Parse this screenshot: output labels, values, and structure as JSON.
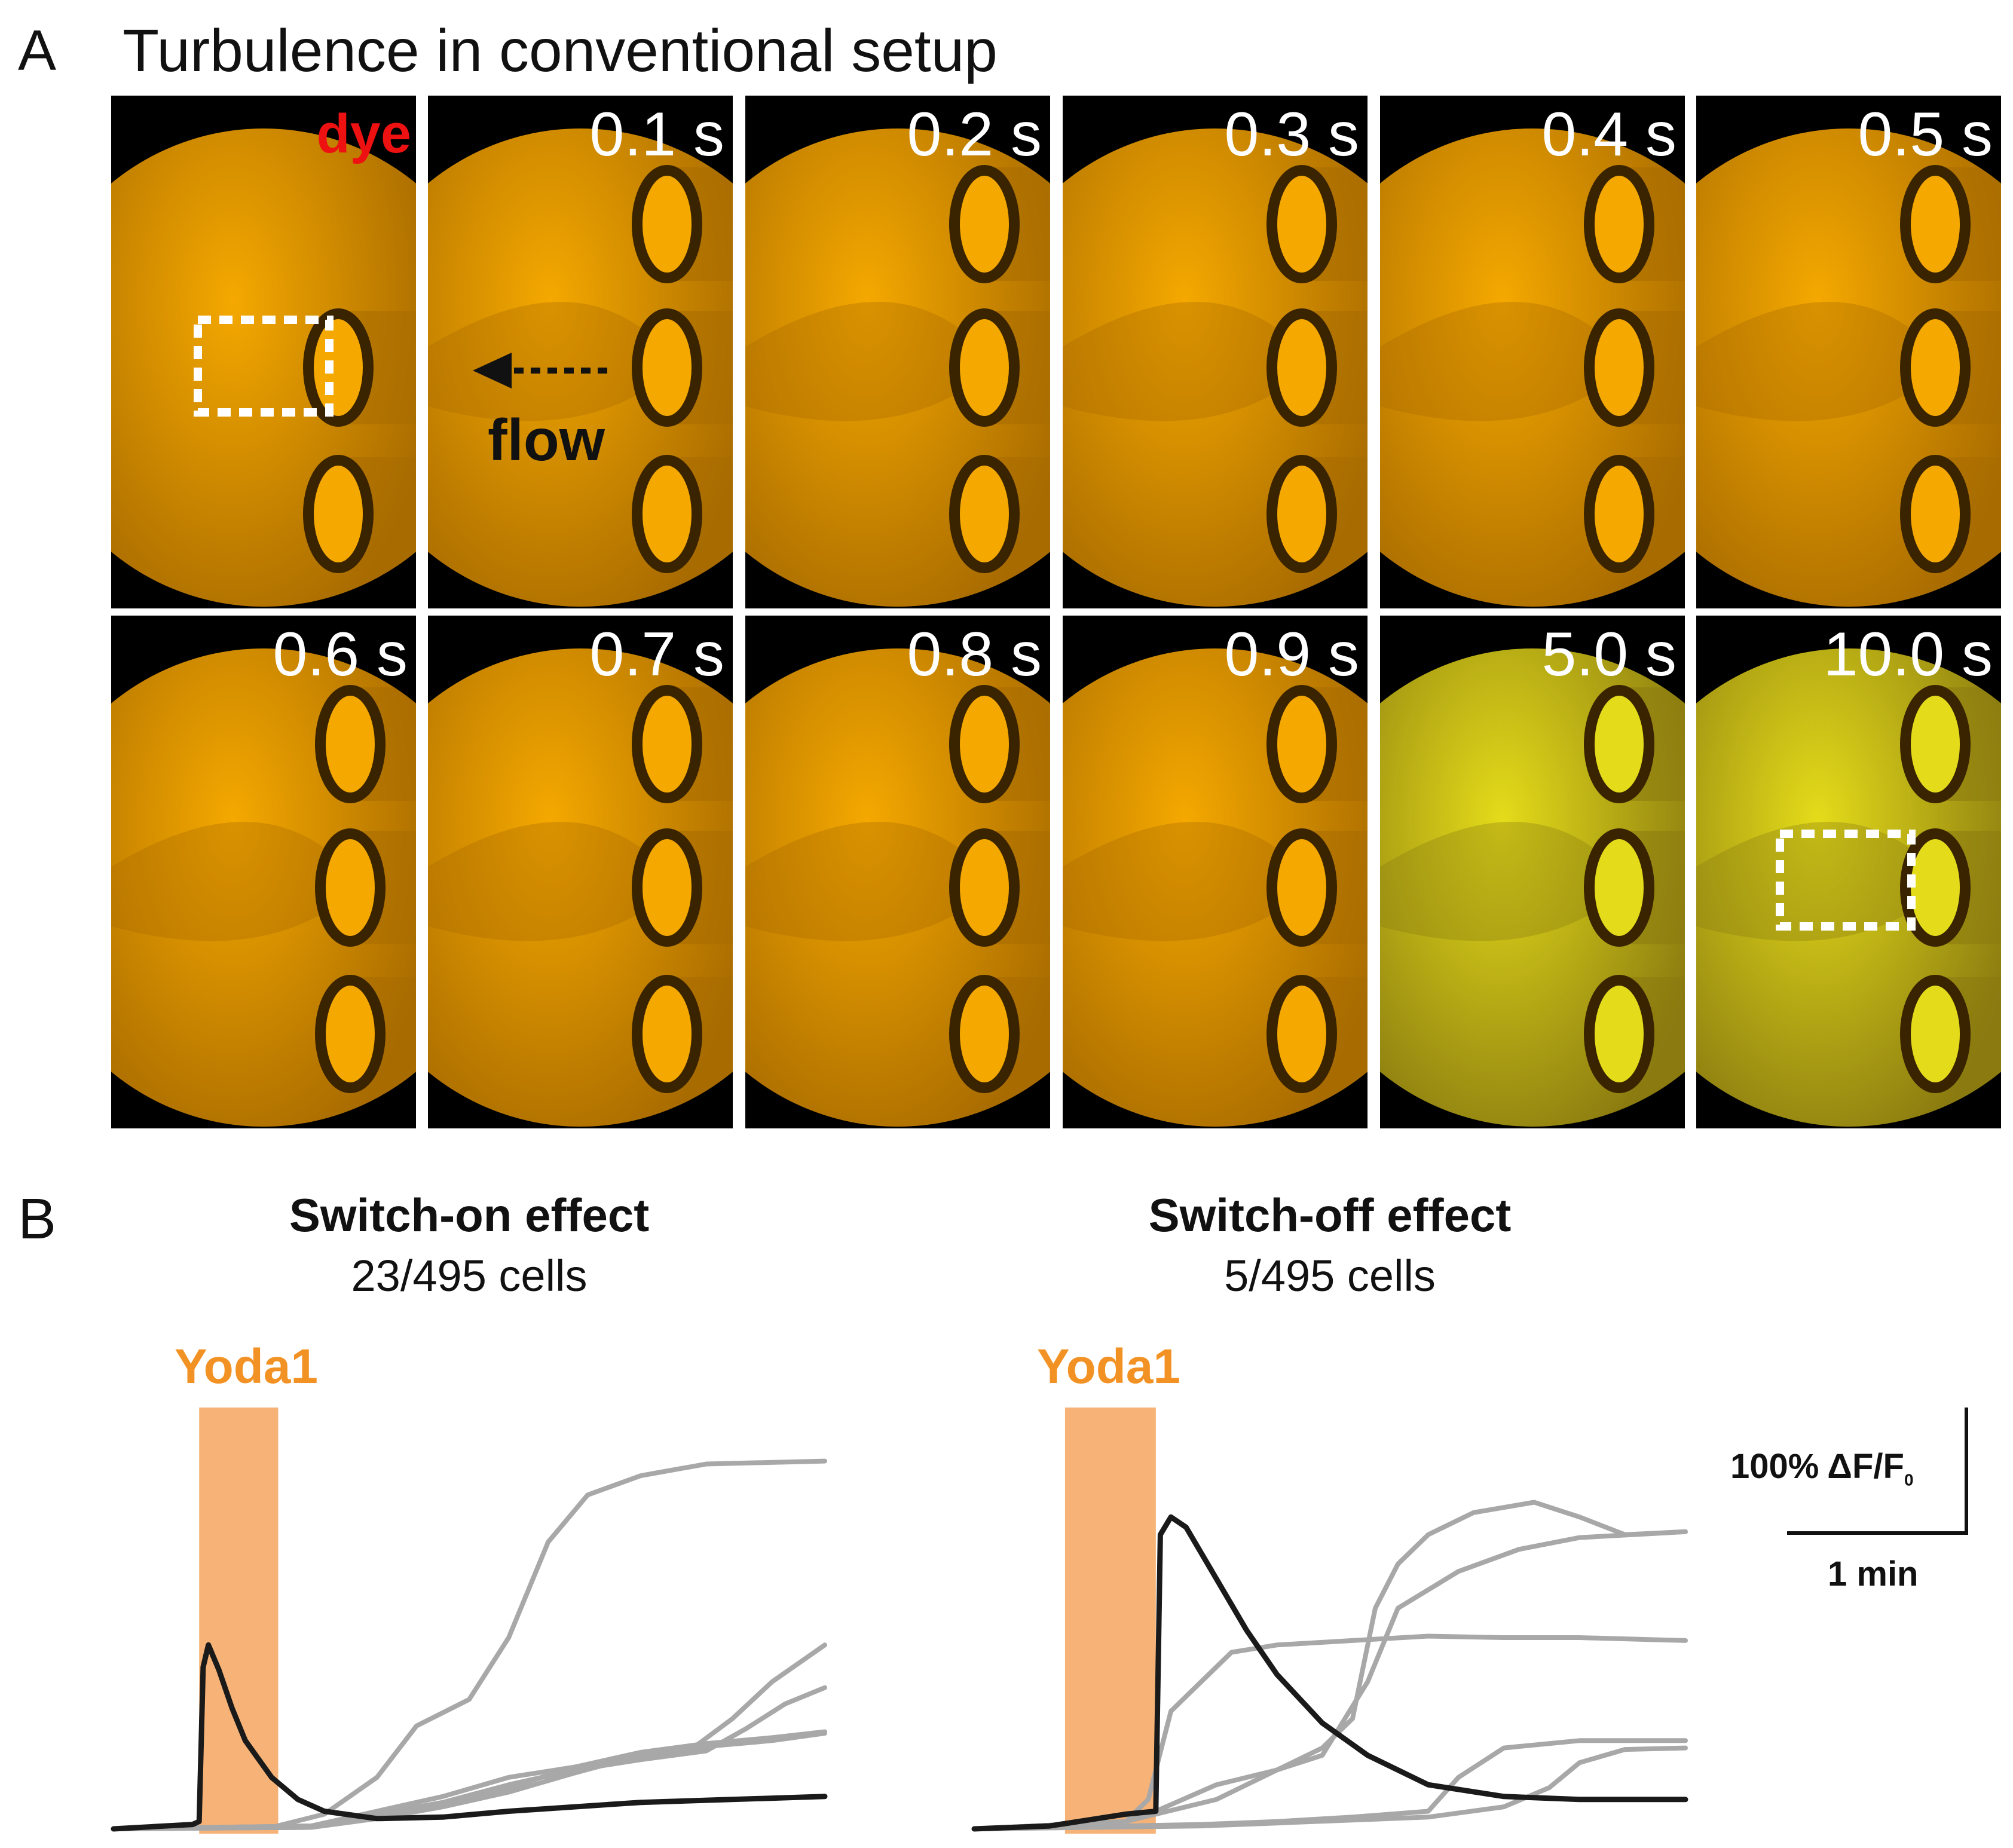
{
  "panel_a": {
    "letter": "A",
    "title": "Turbulence in conventional setup",
    "dye_label": "dye",
    "flow_label": "flow",
    "frames": [
      {
        "time": "",
        "tint": "orange"
      },
      {
        "time": "0.1 s",
        "tint": "orange"
      },
      {
        "time": "0.2 s",
        "tint": "orange"
      },
      {
        "time": "0.3 s",
        "tint": "orange"
      },
      {
        "time": "0.4 s",
        "tint": "orange"
      },
      {
        "time": "0.5 s",
        "tint": "orange"
      },
      {
        "time": "0.6 s",
        "tint": "orange"
      },
      {
        "time": "0.7 s",
        "tint": "orange"
      },
      {
        "time": "0.8 s",
        "tint": "orange"
      },
      {
        "time": "0.9 s",
        "tint": "orange"
      },
      {
        "time": "5.0 s",
        "tint": "yellow"
      },
      {
        "time": "10.0 s",
        "tint": "yellow"
      }
    ],
    "colors": {
      "orange": "#f4a800",
      "yellow": "#e4dc1a",
      "background": "#000000"
    }
  },
  "panel_b": {
    "letter": "B",
    "stimulus_label": "Yoda1",
    "scale_bar": {
      "y_label": "100% ΔF/F",
      "y_sub": "0",
      "x_label": "1 min",
      "y_value_pct": 100,
      "x_value_min": 1
    },
    "colors": {
      "stimulus": "#f7b377",
      "stimulus_text": "#f39224",
      "gray_trace": "#a8a8a8",
      "black_trace": "#1a1a1a"
    }
  },
  "chart_data": [
    {
      "type": "line",
      "title": "Switch-on effect",
      "subtitle": "23/495 cells",
      "units": {
        "x": "min",
        "y": "% ΔF/F0"
      },
      "ylim": [
        0,
        260
      ],
      "xlim": [
        0,
        5.4
      ],
      "stimulus": {
        "label": "Yoda1",
        "start": 0.65,
        "end": 1.25
      },
      "series": [
        {
          "color": "black",
          "points": [
            [
              0,
              0
            ],
            [
              0.6,
              3
            ],
            [
              0.65,
              5
            ],
            [
              0.68,
              110
            ],
            [
              0.72,
              125
            ],
            [
              0.8,
              108
            ],
            [
              0.9,
              82
            ],
            [
              1.0,
              60
            ],
            [
              1.2,
              35
            ],
            [
              1.4,
              20
            ],
            [
              1.6,
              12
            ],
            [
              2.0,
              7
            ],
            [
              2.5,
              8
            ],
            [
              3.0,
              12
            ],
            [
              4.0,
              18
            ],
            [
              5.4,
              22
            ]
          ]
        },
        {
          "color": "gray",
          "points": [
            [
              0,
              0
            ],
            [
              1.2,
              1
            ],
            [
              1.6,
              10
            ],
            [
              2.0,
              35
            ],
            [
              2.3,
              70
            ],
            [
              2.7,
              88
            ],
            [
              3.0,
              130
            ],
            [
              3.3,
              195
            ],
            [
              3.6,
              227
            ],
            [
              4.0,
              240
            ],
            [
              4.5,
              248
            ],
            [
              5.4,
              250
            ]
          ]
        },
        {
          "color": "gray",
          "points": [
            [
              0,
              0
            ],
            [
              1.5,
              2
            ],
            [
              2.0,
              12
            ],
            [
              2.5,
              22
            ],
            [
              3.0,
              35
            ],
            [
              3.5,
              42
            ],
            [
              4.0,
              50
            ],
            [
              4.4,
              55
            ],
            [
              4.7,
              75
            ],
            [
              5.0,
              100
            ],
            [
              5.4,
              125
            ]
          ]
        },
        {
          "color": "gray",
          "points": [
            [
              0,
              0
            ],
            [
              1.5,
              2
            ],
            [
              2.0,
              10
            ],
            [
              2.5,
              18
            ],
            [
              3.0,
              30
            ],
            [
              3.5,
              40
            ],
            [
              4.0,
              47
            ],
            [
              4.5,
              53
            ],
            [
              4.8,
              68
            ],
            [
              5.1,
              85
            ],
            [
              5.4,
              96
            ]
          ]
        },
        {
          "color": "gray",
          "points": [
            [
              0,
              0
            ],
            [
              1.5,
              1
            ],
            [
              2.0,
              8
            ],
            [
              2.5,
              17
            ],
            [
              3.0,
              28
            ],
            [
              3.5,
              42
            ],
            [
              4.0,
              52
            ],
            [
              4.5,
              58
            ],
            [
              5.0,
              62
            ],
            [
              5.4,
              66
            ]
          ]
        },
        {
          "color": "gray",
          "points": [
            [
              0,
              0
            ],
            [
              1.5,
              1
            ],
            [
              2.0,
              7
            ],
            [
              2.5,
              15
            ],
            [
              3.0,
              25
            ],
            [
              3.5,
              38
            ],
            [
              4.0,
              50
            ],
            [
              4.5,
              56
            ],
            [
              5.0,
              60
            ],
            [
              5.4,
              65
            ]
          ]
        }
      ]
    },
    {
      "type": "line",
      "title": "Switch-off effect",
      "subtitle": "5/495 cells",
      "units": {
        "x": "min",
        "y": "% ΔF/F0"
      },
      "ylim": [
        0,
        260
      ],
      "xlim": [
        0,
        4.7
      ],
      "stimulus": {
        "label": "Yoda1",
        "start": 0.6,
        "end": 1.2
      },
      "series": [
        {
          "color": "black",
          "points": [
            [
              0,
              0
            ],
            [
              0.5,
              2
            ],
            [
              1.0,
              10
            ],
            [
              1.2,
              12
            ],
            [
              1.23,
              200
            ],
            [
              1.3,
              212
            ],
            [
              1.4,
              205
            ],
            [
              1.6,
              170
            ],
            [
              1.8,
              135
            ],
            [
              2.0,
              105
            ],
            [
              2.3,
              72
            ],
            [
              2.6,
              50
            ],
            [
              3.0,
              30
            ],
            [
              3.5,
              22
            ],
            [
              4.0,
              20
            ],
            [
              4.7,
              20
            ]
          ]
        },
        {
          "color": "gray",
          "points": [
            [
              0,
              0
            ],
            [
              1.0,
              5
            ],
            [
              1.15,
              20
            ],
            [
              1.3,
              80
            ],
            [
              1.5,
              100
            ],
            [
              1.7,
              120
            ],
            [
              2.0,
              125
            ],
            [
              2.5,
              128
            ],
            [
              3.0,
              131
            ],
            [
              3.5,
              130
            ],
            [
              4.0,
              130
            ],
            [
              4.7,
              128
            ]
          ]
        },
        {
          "color": "gray",
          "points": [
            [
              0,
              0
            ],
            [
              1.0,
              5
            ],
            [
              1.2,
              10
            ],
            [
              1.6,
              20
            ],
            [
              2.0,
              40
            ],
            [
              2.3,
              55
            ],
            [
              2.5,
              75
            ],
            [
              2.65,
              150
            ],
            [
              2.8,
              180
            ],
            [
              3.0,
              200
            ],
            [
              3.3,
              215
            ],
            [
              3.7,
              222
            ],
            [
              4.0,
              212
            ],
            [
              4.3,
              200
            ],
            [
              4.7,
              202
            ]
          ]
        },
        {
          "color": "gray",
          "points": [
            [
              0,
              0
            ],
            [
              1.0,
              5
            ],
            [
              1.2,
              12
            ],
            [
              1.6,
              30
            ],
            [
              2.0,
              40
            ],
            [
              2.3,
              50
            ],
            [
              2.6,
              100
            ],
            [
              2.8,
              150
            ],
            [
              3.2,
              175
            ],
            [
              3.6,
              190
            ],
            [
              4.0,
              198
            ],
            [
              4.7,
              202
            ]
          ]
        },
        {
          "color": "gray",
          "points": [
            [
              0,
              0
            ],
            [
              1.5,
              3
            ],
            [
              2.0,
              5
            ],
            [
              2.5,
              8
            ],
            [
              3.0,
              12
            ],
            [
              3.2,
              35
            ],
            [
              3.5,
              55
            ],
            [
              4.0,
              60
            ],
            [
              4.7,
              60
            ]
          ]
        },
        {
          "color": "gray",
          "points": [
            [
              0,
              0
            ],
            [
              1.5,
              2
            ],
            [
              2.0,
              4
            ],
            [
              2.5,
              6
            ],
            [
              3.0,
              8
            ],
            [
              3.5,
              15
            ],
            [
              3.8,
              28
            ],
            [
              4.0,
              45
            ],
            [
              4.3,
              54
            ],
            [
              4.7,
              55
            ]
          ]
        }
      ]
    }
  ]
}
